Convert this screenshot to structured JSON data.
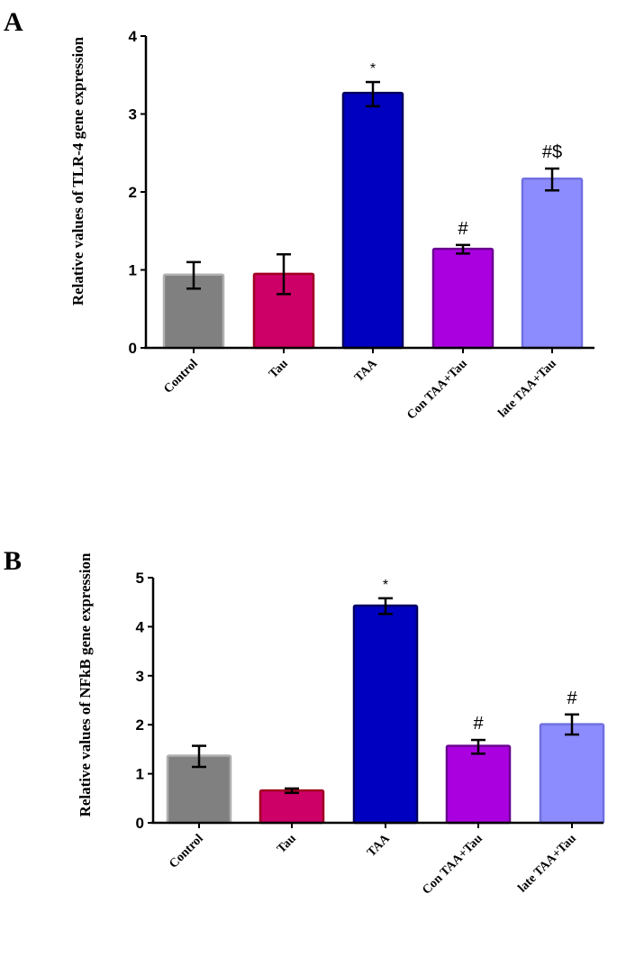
{
  "chart_data": [
    {
      "type": "bar",
      "panel_label": "A",
      "title": "",
      "xlabel": "",
      "ylabel": "Relative values of TLR-4 gene expression",
      "categories": [
        "Control",
        "Tau",
        "TAA",
        "Con TAA+Tau",
        "late TAA+Tau"
      ],
      "values": [
        0.94,
        0.95,
        3.27,
        1.27,
        2.17
      ],
      "error_low": [
        0.76,
        0.69,
        3.1,
        1.21,
        2.02
      ],
      "error_high": [
        1.1,
        1.2,
        3.41,
        1.32,
        2.3
      ],
      "annotations": [
        "",
        "",
        "*",
        "#",
        "#$"
      ],
      "colors": [
        "#808080",
        "#cc0066",
        "#0000c0",
        "#aa00e0",
        "#8c8cff"
      ],
      "edge_colors": [
        "#b0b0b0",
        "#a00020",
        "#000060",
        "#6a0090",
        "#7070e0"
      ],
      "ylim": [
        0,
        4
      ],
      "yticks": [
        0,
        1,
        2,
        3,
        4
      ],
      "grid": false
    },
    {
      "type": "bar",
      "panel_label": "B",
      "title": "",
      "xlabel": "",
      "ylabel": "Relative values of NFkB gene expression",
      "categories": [
        "Control",
        "Tau",
        "TAA",
        "Con TAA+Tau",
        "late TAA+Tau"
      ],
      "values": [
        1.37,
        0.66,
        4.43,
        1.57,
        2.01
      ],
      "error_low": [
        1.14,
        0.61,
        4.26,
        1.41,
        1.8
      ],
      "error_high": [
        1.57,
        0.7,
        4.58,
        1.69,
        2.21
      ],
      "annotations": [
        "",
        "",
        "*",
        "#",
        "#"
      ],
      "colors": [
        "#808080",
        "#cc0066",
        "#0000c0",
        "#aa00e0",
        "#8c8cff"
      ],
      "edge_colors": [
        "#b0b0b0",
        "#a00020",
        "#000060",
        "#6a0090",
        "#7070e0"
      ],
      "ylim": [
        0,
        5
      ],
      "yticks": [
        0,
        1,
        2,
        3,
        4,
        5
      ],
      "grid": false
    }
  ]
}
